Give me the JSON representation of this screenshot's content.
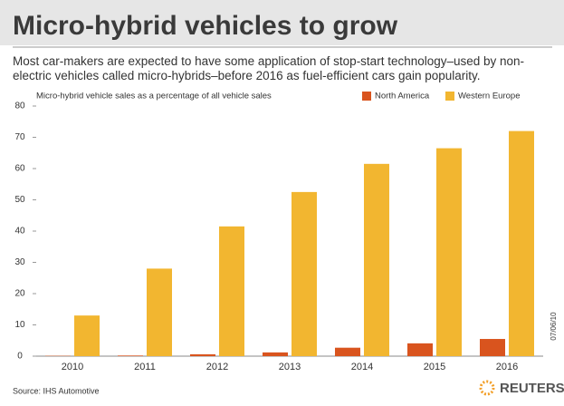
{
  "chart_data": {
    "type": "bar",
    "title": "Micro-hybrid vehicles to grow",
    "subtitle": "Most car-makers are expected to have some application of stop-start technology–used by non-electric vehicles called micro-hybrids–before 2016 as fuel-efficient cars gain popularity.",
    "y_label": "Micro-hybrid vehicle sales as a percentage of all vehicle sales",
    "categories": [
      "2010",
      "2011",
      "2012",
      "2013",
      "2014",
      "2015",
      "2016"
    ],
    "series": [
      {
        "name": "North America",
        "color": "#d9541e",
        "values": [
          0.1,
          0.2,
          0.6,
          1.2,
          2.7,
          4.1,
          5.5
        ]
      },
      {
        "name": "Western Europe",
        "color": "#f2b630",
        "values": [
          13,
          28,
          41.5,
          52.5,
          61.5,
          66.5,
          72
        ]
      }
    ],
    "ylim": [
      0,
      80
    ],
    "yticks": [
      0,
      10,
      20,
      30,
      40,
      50,
      60,
      70,
      80
    ],
    "source": "Source: IHS Automotive",
    "date": "07/06/10",
    "brand": "REUTERS"
  }
}
